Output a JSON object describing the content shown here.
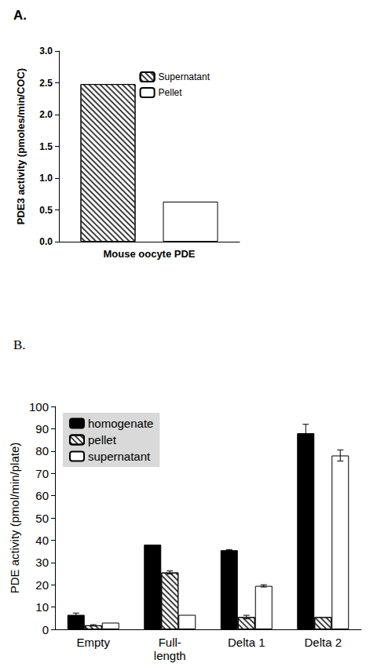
{
  "chart_data": [
    {
      "type": "bar",
      "title": "A.",
      "ylabel": "PDE3 activity (pmoles/min/COC)",
      "categories": [
        "Mouse oocyte PDE"
      ],
      "series": [
        {
          "name": "Supernatant",
          "color": "#404040",
          "values": [
            2.48
          ]
        },
        {
          "name": "Pellet",
          "color": "#ffffff",
          "values": [
            0.63
          ]
        }
      ],
      "ylim": [
        0,
        3
      ],
      "yticks": [
        {
          "value": 0,
          "label": "0.0"
        },
        0.5,
        {
          "value": 1,
          "label": "1.0"
        },
        1.5,
        {
          "value": 2,
          "label": "2.0"
        },
        2.5,
        {
          "value": 3,
          "label": "3.0"
        }
      ],
      "legend": "upper right",
      "grid": false
    },
    {
      "type": "bar",
      "title": "B.",
      "ylabel": "PDE activity (pmol/min/plate)",
      "categories": [
        "Empty",
        "Full-\nlength",
        "Delta 1",
        "Delta 2"
      ],
      "series": [
        {
          "name": "homogenate",
          "color": "#000000",
          "values": [
            6.5,
            38,
            35.5,
            88
          ],
          "errors": [
            0.8,
            0,
            0.3,
            4
          ]
        },
        {
          "name": "pellet",
          "color": "#404040",
          "values": [
            1.8,
            25.5,
            5.5,
            5.5
          ],
          "errors": [
            0.3,
            0.7,
            0.8,
            0
          ]
        },
        {
          "name": "supernatant",
          "color": "#ffffff",
          "values": [
            3,
            6.5,
            19.5,
            78
          ],
          "errors": [
            0,
            0,
            0.5,
            2.5
          ]
        }
      ],
      "ylim": [
        0,
        100
      ],
      "yticks": [
        0,
        10,
        20,
        30,
        40,
        50,
        60,
        70,
        80,
        90,
        100
      ],
      "legend": "upper left",
      "grid": false
    }
  ]
}
